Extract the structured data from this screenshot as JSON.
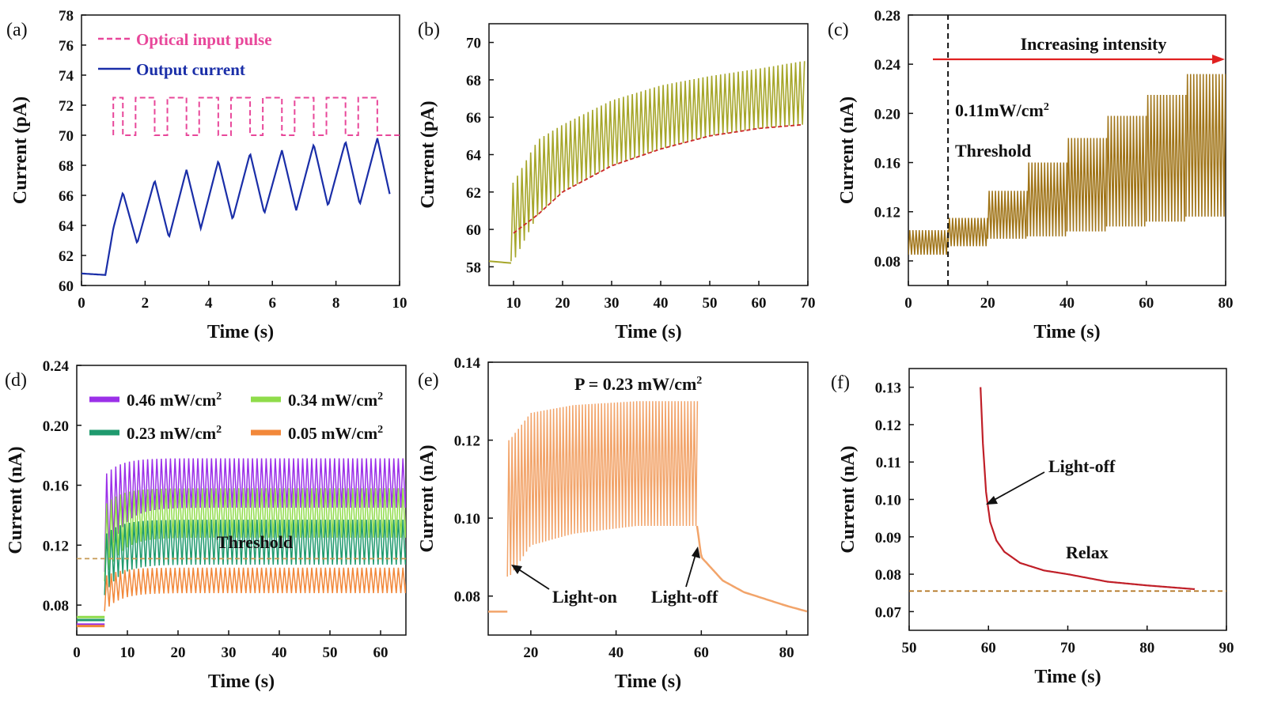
{
  "figure": {
    "panels": [
      {
        "id": "a",
        "panel_label": "(a)",
        "xlabel": "Time (s)",
        "ylabel": "Current (pA)",
        "xlim": [
          0,
          10
        ],
        "ylim": [
          60,
          78
        ],
        "xticks": [
          0,
          2,
          4,
          6,
          8,
          10
        ],
        "yticks": [
          60,
          62,
          64,
          66,
          68,
          70,
          72,
          74,
          76,
          78
        ],
        "legend": [
          {
            "label": "Optical input pulse",
            "color": "#e8479a",
            "style": "dashed"
          },
          {
            "label": "Output current",
            "color": "#1a2ea8",
            "style": "solid"
          }
        ]
      },
      {
        "id": "b",
        "panel_label": "(b)",
        "xlabel": "Time (s)",
        "ylabel": "Current (pA)",
        "xlim": [
          5,
          70
        ],
        "ylim": [
          57,
          71
        ],
        "xticks": [
          10,
          20,
          30,
          40,
          50,
          60,
          70
        ],
        "yticks": [
          58,
          60,
          62,
          64,
          66,
          68,
          70
        ]
      },
      {
        "id": "c",
        "panel_label": "(c)",
        "xlabel": "Time (s)",
        "ylabel": "Current (nA)",
        "xlim": [
          0,
          80
        ],
        "ylim": [
          0.06,
          0.28
        ],
        "xticks": [
          0,
          20,
          40,
          60,
          80
        ],
        "yticks": [
          "0.08",
          "0.12",
          "0.16",
          "0.20",
          "0.24",
          "0.28"
        ],
        "annotations": {
          "arrow_text": "Increasing intensity",
          "intensity_value": "0.11mW/cm",
          "intensity_sup": "2",
          "threshold_text": "Threshold"
        }
      },
      {
        "id": "d",
        "panel_label": "(d)",
        "xlabel": "Time (s)",
        "ylabel": "Current (nA)",
        "xlim": [
          0,
          65
        ],
        "ylim": [
          0.06,
          0.24
        ],
        "xticks": [
          0,
          10,
          20,
          30,
          40,
          50,
          60
        ],
        "yticks": [
          "0.08",
          "0.12",
          "0.16",
          "0.20",
          "0.24"
        ],
        "legend": [
          {
            "label": "0.46 mW/cm",
            "sup": "2",
            "color": "#9b30e8"
          },
          {
            "label": "0.34 mW/cm",
            "sup": "2",
            "color": "#8fdc4a"
          },
          {
            "label": "0.23 mW/cm",
            "sup": "2",
            "color": "#1f9a6e"
          },
          {
            "label": "0.05 mW/cm",
            "sup": "2",
            "color": "#f2883a"
          }
        ],
        "annotations": {
          "threshold_text": "Threshold"
        }
      },
      {
        "id": "e",
        "panel_label": "(e)",
        "xlabel": "Time (s)",
        "ylabel": "Current (nA)",
        "xlim": [
          10,
          85
        ],
        "ylim": [
          0.07,
          0.14
        ],
        "xticks": [
          20,
          40,
          60,
          80
        ],
        "yticks": [
          "0.08",
          "0.10",
          "0.12",
          "0.14"
        ],
        "annotations": {
          "power_text": "P = 0.23 mW/cm",
          "power_sup": "2",
          "light_on": "Light-on",
          "light_off": "Light-off"
        }
      },
      {
        "id": "f",
        "panel_label": "(f)",
        "xlabel": "Time (s)",
        "ylabel": "Current (nA)",
        "xlim": [
          50,
          90
        ],
        "ylim": [
          0.065,
          0.135
        ],
        "xticks": [
          50,
          60,
          70,
          80,
          90
        ],
        "yticks": [
          "0.07",
          "0.08",
          "0.09",
          "0.10",
          "0.11",
          "0.12",
          "0.13"
        ],
        "annotations": {
          "light_off": "Light-off",
          "relax": "Relax"
        }
      }
    ]
  },
  "chart_data": [
    {
      "panel": "a",
      "type": "line",
      "series": [
        {
          "name": "Optical input pulse",
          "color": "#e8479a",
          "style": "dashed",
          "low": 70.0,
          "high": 72.5,
          "pulse_on_intervals": [
            [
              1.0,
              1.3
            ],
            [
              1.7,
              2.3
            ],
            [
              2.7,
              3.3
            ],
            [
              3.7,
              4.3
            ],
            [
              4.7,
              5.3
            ],
            [
              5.7,
              6.3
            ],
            [
              6.7,
              7.3
            ],
            [
              7.7,
              8.3
            ],
            [
              8.7,
              9.3
            ]
          ],
          "x_range": [
            1.0,
            10.0
          ]
        },
        {
          "name": "Output current",
          "color": "#1a2ea8",
          "style": "solid",
          "x": [
            0,
            0.75,
            1.0,
            1.3,
            1.75,
            2.3,
            2.75,
            3.3,
            3.75,
            4.3,
            4.75,
            5.3,
            5.75,
            6.3,
            6.75,
            7.3,
            7.75,
            8.3,
            8.75,
            9.3,
            9.7
          ],
          "y": [
            60.8,
            60.7,
            63.8,
            66.2,
            62.8,
            67.0,
            63.2,
            67.7,
            63.8,
            68.3,
            64.4,
            68.8,
            64.8,
            69.0,
            65.0,
            69.4,
            65.3,
            69.6,
            65.4,
            69.8,
            66.0
          ]
        }
      ]
    },
    {
      "panel": "b",
      "type": "line",
      "series": [
        {
          "name": "",
          "color": "#a6a62a",
          "kind": "oscillation",
          "pre_level": 58.3,
          "start_x": 9.5,
          "end_x": 69.5,
          "period": 0.9,
          "base": [
            [
              10,
              58.3
            ],
            [
              15,
              60.8
            ],
            [
              20,
              62.0
            ],
            [
              30,
              63.4
            ],
            [
              40,
              64.3
            ],
            [
              50,
              65.0
            ],
            [
              60,
              65.4
            ],
            [
              69,
              65.6
            ]
          ],
          "peak": [
            [
              10,
              62.5
            ],
            [
              15,
              64.8
            ],
            [
              20,
              65.6
            ],
            [
              30,
              66.9
            ],
            [
              40,
              67.7
            ],
            [
              50,
              68.2
            ],
            [
              60,
              68.6
            ],
            [
              69,
              69.0
            ]
          ]
        },
        {
          "name": "",
          "color": "#cc2a2a",
          "style": "dashed",
          "x": [
            10,
            15,
            20,
            30,
            40,
            50,
            60,
            69
          ],
          "y": [
            59.8,
            60.8,
            62.0,
            63.4,
            64.3,
            65.0,
            65.4,
            65.6
          ]
        }
      ]
    },
    {
      "panel": "c",
      "type": "line",
      "series": [
        {
          "name": "",
          "color": "#a07418",
          "kind": "staircase",
          "period": 0.8,
          "steps": [
            [
              0,
              10,
              0.085,
              0.105
            ],
            [
              10,
              20,
              0.092,
              0.115
            ],
            [
              20,
              30,
              0.098,
              0.137
            ],
            [
              30,
              40,
              0.1,
              0.16
            ],
            [
              40,
              50,
              0.104,
              0.18
            ],
            [
              50,
              60,
              0.108,
              0.198
            ],
            [
              60,
              70,
              0.112,
              0.215
            ],
            [
              70,
              80,
              0.116,
              0.232
            ]
          ]
        },
        {
          "name": "",
          "color": "#111111",
          "style": "dashed",
          "x": [
            10,
            10
          ],
          "y": [
            0.06,
            0.28
          ]
        }
      ]
    },
    {
      "panel": "d",
      "type": "line",
      "threshold": 0.111,
      "series": [
        {
          "name": "0.46 mW/cm2",
          "color": "#9b30e8",
          "pre": 0.067,
          "base": 0.145,
          "peak": 0.178
        },
        {
          "name": "0.34 mW/cm2",
          "color": "#8fdc4a",
          "pre": 0.072,
          "base": 0.125,
          "peak": 0.158
        },
        {
          "name": "0.23 mW/cm2",
          "color": "#1f9a6e",
          "pre": 0.07,
          "base": 0.107,
          "peak": 0.137
        },
        {
          "name": "0.05 mW/cm2",
          "color": "#f2883a",
          "pre": 0.066,
          "base": 0.088,
          "peak": 0.105
        }
      ]
    },
    {
      "panel": "e",
      "type": "line",
      "series": [
        {
          "name": "P = 0.23 mW/cm2",
          "color": "#f2a46a",
          "pre_level": 0.076,
          "on_x": 14.5,
          "off_x": 59,
          "end_x": 85,
          "base": [
            [
              15,
              0.085
            ],
            [
              20,
              0.093
            ],
            [
              30,
              0.096
            ],
            [
              45,
              0.098
            ],
            [
              59,
              0.098
            ]
          ],
          "peak": [
            [
              15,
              0.12
            ],
            [
              20,
              0.127
            ],
            [
              30,
              0.129
            ],
            [
              45,
              0.13
            ],
            [
              59,
              0.13
            ]
          ],
          "decay": [
            [
              59,
              0.098
            ],
            [
              60,
              0.09
            ],
            [
              65,
              0.084
            ],
            [
              70,
              0.081
            ],
            [
              80,
              0.0775
            ],
            [
              85,
              0.076
            ]
          ]
        }
      ]
    },
    {
      "panel": "f",
      "type": "line",
      "series": [
        {
          "name": "",
          "color": "#c01f28",
          "x": [
            59,
            59.3,
            59.7,
            60.2,
            61,
            62,
            64,
            67,
            70,
            75,
            80,
            86
          ],
          "y": [
            0.13,
            0.115,
            0.102,
            0.094,
            0.089,
            0.086,
            0.083,
            0.081,
            0.08,
            0.078,
            0.077,
            0.076
          ]
        },
        {
          "name": "",
          "color": "#b0701a",
          "style": "dashed",
          "x": [
            50,
            90
          ],
          "y": [
            0.0755,
            0.0755
          ]
        }
      ]
    }
  ]
}
